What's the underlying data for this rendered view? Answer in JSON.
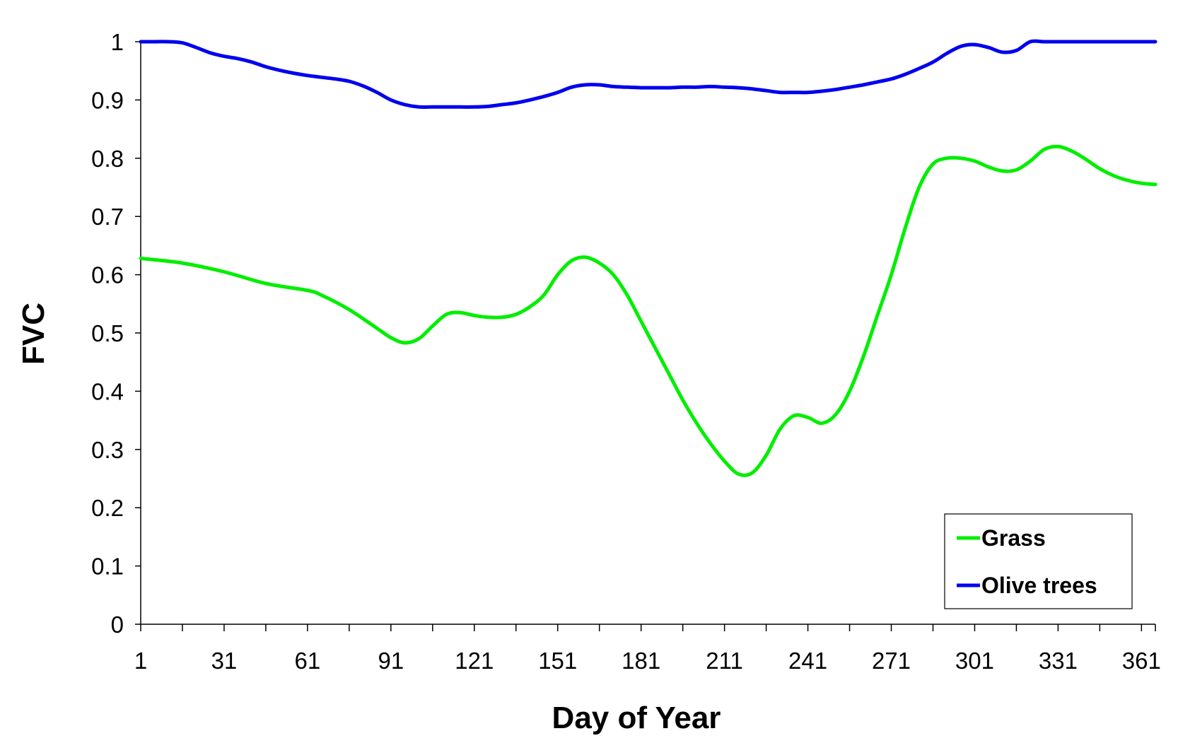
{
  "chart_data": {
    "type": "line",
    "title": "",
    "xlabel": "Day of Year",
    "ylabel": "FVC",
    "xlim": [
      1,
      366
    ],
    "ylim": [
      0,
      1
    ],
    "x_tick_labels": [
      "1",
      "31",
      "61",
      "91",
      "121",
      "151",
      "181",
      "211",
      "241",
      "271",
      "301",
      "331",
      "361"
    ],
    "y_tick_labels": [
      "0",
      "0.1",
      "0.2",
      "0.3",
      "0.4",
      "0.5",
      "0.6",
      "0.7",
      "0.8",
      "0.9",
      "1"
    ],
    "grid": false,
    "legend_position": "bottom-right",
    "series": [
      {
        "name": "Grass",
        "color": "#00ee00",
        "x": [
          1,
          16,
          31,
          46,
          61,
          66,
          76,
          86,
          91,
          96,
          101,
          106,
          111,
          116,
          121,
          126,
          131,
          136,
          141,
          146,
          151,
          156,
          161,
          166,
          171,
          176,
          181,
          186,
          191,
          196,
          201,
          206,
          211,
          216,
          221,
          226,
          231,
          236,
          241,
          246,
          251,
          256,
          261,
          266,
          271,
          276,
          281,
          286,
          291,
          296,
          301,
          306,
          311,
          316,
          321,
          326,
          331,
          336,
          341,
          346,
          351,
          356,
          361,
          366
        ],
        "y": [
          0.628,
          0.62,
          0.605,
          0.585,
          0.573,
          0.565,
          0.54,
          0.508,
          0.492,
          0.483,
          0.49,
          0.512,
          0.532,
          0.535,
          0.53,
          0.527,
          0.527,
          0.532,
          0.545,
          0.565,
          0.6,
          0.624,
          0.63,
          0.62,
          0.6,
          0.565,
          0.52,
          0.475,
          0.43,
          0.385,
          0.345,
          0.31,
          0.28,
          0.258,
          0.26,
          0.29,
          0.335,
          0.358,
          0.355,
          0.345,
          0.36,
          0.4,
          0.46,
          0.53,
          0.6,
          0.68,
          0.75,
          0.79,
          0.8,
          0.8,
          0.795,
          0.785,
          0.778,
          0.78,
          0.795,
          0.815,
          0.82,
          0.812,
          0.798,
          0.782,
          0.77,
          0.762,
          0.757,
          0.755
        ]
      },
      {
        "name": "Olive trees",
        "color": "#0000ee",
        "x": [
          1,
          6,
          11,
          16,
          21,
          26,
          31,
          36,
          41,
          46,
          51,
          56,
          61,
          66,
          71,
          76,
          81,
          86,
          91,
          96,
          101,
          106,
          111,
          116,
          121,
          126,
          131,
          136,
          141,
          146,
          151,
          156,
          161,
          166,
          171,
          176,
          181,
          186,
          191,
          196,
          201,
          206,
          211,
          216,
          221,
          226,
          231,
          236,
          241,
          246,
          251,
          256,
          261,
          266,
          271,
          276,
          281,
          286,
          291,
          296,
          301,
          306,
          311,
          316,
          321,
          326,
          331,
          336,
          341,
          346,
          351,
          356,
          361,
          366
        ],
        "y": [
          1.0,
          1.0,
          1.0,
          0.998,
          0.99,
          0.981,
          0.975,
          0.971,
          0.965,
          0.957,
          0.951,
          0.946,
          0.942,
          0.939,
          0.936,
          0.932,
          0.924,
          0.913,
          0.9,
          0.892,
          0.888,
          0.888,
          0.888,
          0.888,
          0.888,
          0.889,
          0.892,
          0.895,
          0.9,
          0.906,
          0.913,
          0.922,
          0.926,
          0.926,
          0.923,
          0.922,
          0.921,
          0.921,
          0.921,
          0.922,
          0.922,
          0.923,
          0.922,
          0.921,
          0.919,
          0.916,
          0.913,
          0.913,
          0.913,
          0.915,
          0.918,
          0.922,
          0.926,
          0.931,
          0.936,
          0.944,
          0.954,
          0.965,
          0.98,
          0.992,
          0.995,
          0.99,
          0.982,
          0.985,
          1.0,
          1.0,
          1.0,
          1.0,
          1.0,
          1.0,
          1.0,
          1.0,
          1.0,
          1.0
        ]
      }
    ]
  }
}
